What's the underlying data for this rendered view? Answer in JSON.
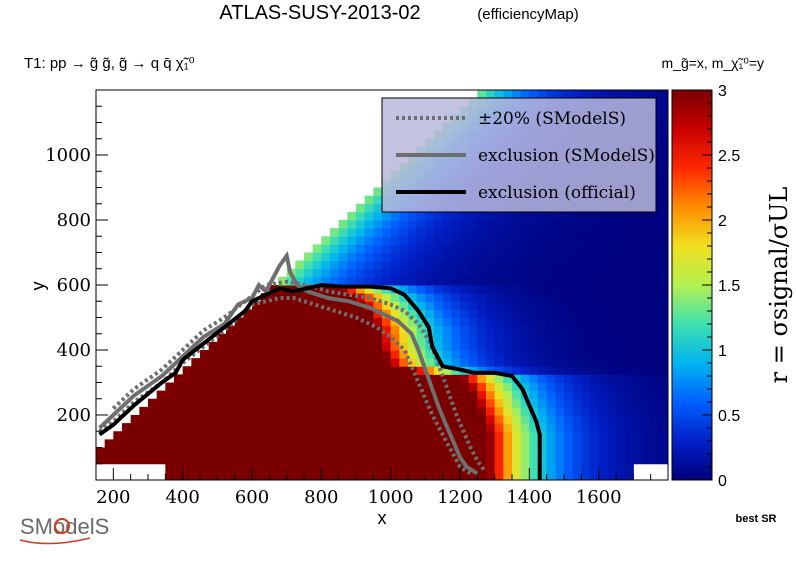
{
  "chart_data": {
    "type": "heatmap",
    "title": "ATLAS-SUSY-2013-02",
    "title_tag": "(efficiencyMap)",
    "process_label": "T1: pp → g̃ g̃, g̃ → q q̄ χ̃₁⁰",
    "mass_label": "m_g̃=x, m_χ̃₁⁰=y",
    "xlabel": "x",
    "ylabel": "y",
    "zlabel": "r = σsignal/σUL",
    "x_ticks": [
      "200",
      "400",
      "600",
      "800",
      "1000",
      "1200",
      "1400",
      "1600"
    ],
    "y_ticks": [
      "200",
      "400",
      "600",
      "800",
      "1000"
    ],
    "z_ticks": [
      "0",
      "0.5",
      "1",
      "1.5",
      "2",
      "2.5",
      "3"
    ],
    "xlim": [
      150,
      1800
    ],
    "ylim": [
      0,
      1200
    ],
    "zlim": [
      0,
      3
    ],
    "colormap": [
      "#00007a",
      "#0020c8",
      "#0060ff",
      "#00b4f0",
      "#40e0b0",
      "#b4f050",
      "#f0e020",
      "#ff8c00",
      "#ff2800",
      "#c80000",
      "#7a0000"
    ],
    "legend": {
      "position": "top-right",
      "entries": [
        {
          "label": "±20% (SModelS)",
          "style": "dotted",
          "color": "#6e6e6e"
        },
        {
          "label": "exclusion (SModelS)",
          "style": "solid",
          "color": "#6e6e6e"
        },
        {
          "label": "exclusion (official)",
          "style": "solid",
          "color": "#000000"
        }
      ]
    },
    "exclusion_official": [
      [
        160,
        140
      ],
      [
        200,
        170
      ],
      [
        260,
        230
      ],
      [
        340,
        300
      ],
      [
        380,
        330
      ],
      [
        400,
        370
      ],
      [
        460,
        420
      ],
      [
        520,
        470
      ],
      [
        580,
        520
      ],
      [
        600,
        550
      ],
      [
        640,
        570
      ],
      [
        680,
        590
      ],
      [
        720,
        580
      ],
      [
        760,
        590
      ],
      [
        800,
        600
      ],
      [
        860,
        595
      ],
      [
        940,
        595
      ],
      [
        1000,
        590
      ],
      [
        1040,
        570
      ],
      [
        1080,
        520
      ],
      [
        1110,
        470
      ],
      [
        1120,
        410
      ],
      [
        1150,
        350
      ],
      [
        1200,
        340
      ],
      [
        1240,
        330
      ],
      [
        1300,
        330
      ],
      [
        1350,
        320
      ],
      [
        1380,
        280
      ],
      [
        1400,
        230
      ],
      [
        1420,
        180
      ],
      [
        1430,
        140
      ],
      [
        1430,
        0
      ]
    ],
    "exclusion_smodels": [
      [
        160,
        160
      ],
      [
        200,
        200
      ],
      [
        260,
        260
      ],
      [
        340,
        320
      ],
      [
        400,
        380
      ],
      [
        460,
        440
      ],
      [
        520,
        480
      ],
      [
        560,
        540
      ],
      [
        600,
        560
      ],
      [
        620,
        600
      ],
      [
        640,
        580
      ],
      [
        660,
        620
      ],
      [
        680,
        660
      ],
      [
        700,
        690
      ],
      [
        710,
        640
      ],
      [
        730,
        600
      ],
      [
        760,
        580
      ],
      [
        820,
        560
      ],
      [
        880,
        550
      ],
      [
        940,
        530
      ],
      [
        980,
        510
      ],
      [
        1020,
        490
      ],
      [
        1060,
        450
      ],
      [
        1080,
        400
      ],
      [
        1100,
        340
      ],
      [
        1120,
        280
      ],
      [
        1140,
        220
      ],
      [
        1160,
        170
      ],
      [
        1180,
        120
      ],
      [
        1200,
        70
      ],
      [
        1220,
        40
      ],
      [
        1250,
        20
      ]
    ],
    "plus20_smodels": [
      [
        160,
        150
      ],
      [
        200,
        180
      ],
      [
        260,
        240
      ],
      [
        340,
        300
      ],
      [
        400,
        360
      ],
      [
        460,
        410
      ],
      [
        520,
        460
      ],
      [
        560,
        500
      ],
      [
        600,
        540
      ],
      [
        640,
        550
      ],
      [
        680,
        560
      ],
      [
        720,
        560
      ],
      [
        780,
        540
      ],
      [
        840,
        520
      ],
      [
        900,
        500
      ],
      [
        960,
        470
      ],
      [
        1000,
        440
      ],
      [
        1040,
        400
      ],
      [
        1060,
        350
      ],
      [
        1080,
        300
      ],
      [
        1100,
        250
      ],
      [
        1120,
        200
      ],
      [
        1140,
        160
      ],
      [
        1160,
        120
      ],
      [
        1180,
        80
      ],
      [
        1200,
        40
      ],
      [
        1230,
        20
      ]
    ],
    "minus20_smodels": [
      [
        200,
        220
      ],
      [
        260,
        280
      ],
      [
        340,
        340
      ],
      [
        400,
        400
      ],
      [
        460,
        460
      ],
      [
        520,
        500
      ],
      [
        580,
        550
      ],
      [
        640,
        600
      ],
      [
        700,
        610
      ],
      [
        760,
        600
      ],
      [
        820,
        580
      ],
      [
        880,
        570
      ],
      [
        940,
        560
      ],
      [
        1000,
        540
      ],
      [
        1040,
        520
      ],
      [
        1080,
        480
      ],
      [
        1110,
        430
      ],
      [
        1130,
        380
      ],
      [
        1150,
        320
      ],
      [
        1170,
        260
      ],
      [
        1190,
        200
      ],
      [
        1210,
        150
      ],
      [
        1230,
        100
      ],
      [
        1250,
        60
      ],
      [
        1270,
        30
      ]
    ],
    "best_sr_label": "best SR",
    "logo_text": "SModelS"
  }
}
